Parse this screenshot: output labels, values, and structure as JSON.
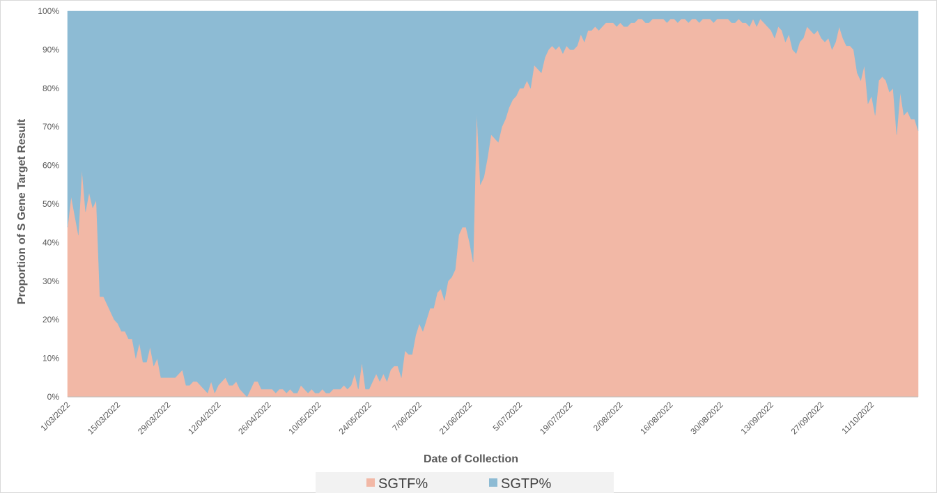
{
  "chart_data": {
    "type": "stacked-area-100",
    "x_label": "Date of Collection",
    "y_label": "Proportion of S Gene Target Result",
    "categories": [
      "1/03/2022",
      null,
      null,
      null,
      null,
      null,
      null,
      null,
      null,
      null,
      null,
      null,
      null,
      null,
      "15/03/2022",
      null,
      null,
      null,
      null,
      null,
      null,
      null,
      null,
      null,
      null,
      null,
      null,
      null,
      "29/03/2022",
      null,
      null,
      null,
      null,
      null,
      null,
      null,
      null,
      null,
      null,
      null,
      null,
      null,
      "12/04/2022",
      null,
      null,
      null,
      null,
      null,
      null,
      null,
      null,
      null,
      null,
      null,
      null,
      null,
      "26/04/2022",
      null,
      null,
      null,
      null,
      null,
      null,
      null,
      null,
      null,
      null,
      null,
      null,
      null,
      "10/05/2022",
      null,
      null,
      null,
      null,
      null,
      null,
      null,
      null,
      null,
      null,
      null,
      null,
      null,
      "24/05/2022",
      null,
      null,
      null,
      null,
      null,
      null,
      null,
      null,
      null,
      null,
      null,
      null,
      null,
      "7/06/2022",
      null,
      null,
      null,
      null,
      null,
      null,
      null,
      null,
      null,
      null,
      null,
      null,
      null,
      "21/06/2022",
      null,
      null,
      null,
      null,
      null,
      null,
      null,
      null,
      null,
      null,
      null,
      null,
      null,
      "5/07/2022",
      null,
      null,
      null,
      null,
      null,
      null,
      null,
      null,
      null,
      null,
      null,
      null,
      null,
      "19/07/2022",
      null,
      null,
      null,
      null,
      null,
      null,
      null,
      null,
      null,
      null,
      null,
      null,
      null,
      "2/08/2022",
      null,
      null,
      null,
      null,
      null,
      null,
      null,
      null,
      null,
      null,
      null,
      null,
      null,
      "16/08/2022",
      null,
      null,
      null,
      null,
      null,
      null,
      null,
      null,
      null,
      null,
      null,
      null,
      null,
      "30/08/2022",
      null,
      null,
      null,
      null,
      null,
      null,
      null,
      null,
      null,
      null,
      null,
      null,
      null,
      "13/09/2022",
      null,
      null,
      null,
      null,
      null,
      null,
      null,
      null,
      null,
      null,
      null,
      null,
      null,
      "27/09/2022",
      null,
      null,
      null,
      null,
      null,
      null,
      null,
      null,
      null,
      null,
      null,
      null,
      null,
      "11/10/2022",
      null,
      null,
      null,
      null,
      null,
      null,
      null,
      null,
      null,
      null,
      null,
      null,
      null
    ],
    "series": [
      {
        "name": "SGTF%",
        "color": "#f2b8a6",
        "values": [
          44,
          52,
          47,
          42,
          59,
          48,
          53,
          49,
          51,
          26,
          26,
          24,
          22,
          20,
          19,
          17,
          17,
          15,
          15,
          10,
          14,
          9,
          9,
          13,
          8,
          10,
          5,
          5,
          5,
          5,
          5,
          6,
          7,
          3,
          3,
          4,
          4,
          3,
          2,
          1,
          4,
          1,
          3,
          4,
          5,
          3,
          3,
          4,
          2,
          1,
          0,
          2,
          4,
          4,
          2,
          2,
          2,
          2,
          1,
          2,
          2,
          1,
          2,
          1,
          1,
          3,
          2,
          1,
          2,
          1,
          1,
          2,
          1,
          1,
          2,
          2,
          2,
          3,
          2,
          3,
          6,
          2,
          9,
          2,
          2,
          4,
          6,
          4,
          6,
          4,
          7,
          8,
          8,
          5,
          12,
          11,
          11,
          16,
          19,
          17,
          20,
          23,
          23,
          27,
          28,
          25,
          30,
          31,
          33,
          42,
          44,
          44,
          40,
          35,
          74,
          55,
          57,
          62,
          68,
          67,
          66,
          70,
          72,
          75,
          77,
          78,
          80,
          80,
          82,
          80,
          86,
          85,
          84,
          88,
          90,
          91,
          90,
          91,
          89,
          91,
          90,
          90,
          91,
          94,
          92,
          95,
          95,
          96,
          95,
          96,
          97,
          97,
          97,
          96,
          97,
          96,
          96,
          97,
          97,
          98,
          98,
          97,
          97,
          98,
          98,
          98,
          98,
          97,
          98,
          98,
          97,
          98,
          98,
          97,
          98,
          98,
          97,
          98,
          98,
          98,
          97,
          98,
          98,
          98,
          98,
          97,
          97,
          98,
          97,
          97,
          96,
          98,
          96,
          98,
          97,
          96,
          95,
          93,
          96,
          95,
          92,
          94,
          90,
          89,
          92,
          93,
          96,
          95,
          94,
          95,
          93,
          92,
          93,
          90,
          92,
          96,
          93,
          91,
          91,
          90,
          84,
          82,
          86,
          76,
          78,
          73,
          82,
          83,
          82,
          79,
          80,
          68,
          79,
          73,
          74,
          72,
          72,
          69
        ]
      },
      {
        "name": "SGTP%",
        "color": "#8dbbd4",
        "values": [
          56,
          48,
          53,
          58,
          41,
          52,
          47,
          51,
          49,
          74,
          74,
          76,
          78,
          80,
          81,
          83,
          83,
          85,
          85,
          90,
          86,
          91,
          91,
          87,
          92,
          90,
          95,
          95,
          95,
          95,
          95,
          94,
          93,
          97,
          97,
          96,
          96,
          97,
          98,
          99,
          96,
          99,
          97,
          96,
          95,
          97,
          97,
          96,
          98,
          99,
          100,
          98,
          96,
          96,
          98,
          98,
          98,
          98,
          99,
          98,
          98,
          99,
          98,
          99,
          99,
          97,
          98,
          99,
          98,
          99,
          99,
          98,
          99,
          99,
          98,
          98,
          98,
          97,
          98,
          97,
          94,
          98,
          91,
          98,
          98,
          96,
          94,
          96,
          94,
          96,
          93,
          92,
          92,
          95,
          88,
          89,
          89,
          84,
          81,
          83,
          80,
          77,
          77,
          73,
          72,
          75,
          70,
          69,
          67,
          58,
          56,
          56,
          60,
          65,
          26,
          45,
          43,
          38,
          32,
          33,
          34,
          30,
          28,
          25,
          23,
          22,
          20,
          20,
          18,
          20,
          14,
          15,
          16,
          12,
          10,
          9,
          10,
          9,
          11,
          9,
          10,
          10,
          9,
          6,
          8,
          5,
          5,
          4,
          5,
          4,
          3,
          3,
          3,
          4,
          3,
          4,
          4,
          3,
          3,
          2,
          2,
          3,
          3,
          2,
          2,
          2,
          2,
          3,
          2,
          2,
          3,
          2,
          2,
          3,
          2,
          2,
          3,
          2,
          2,
          2,
          3,
          2,
          2,
          2,
          2,
          3,
          3,
          2,
          3,
          3,
          4,
          2,
          4,
          2,
          3,
          4,
          5,
          7,
          4,
          5,
          8,
          6,
          10,
          11,
          8,
          7,
          4,
          5,
          6,
          5,
          7,
          8,
          7,
          10,
          8,
          4,
          7,
          9,
          9,
          10,
          16,
          18,
          14,
          24,
          22,
          27,
          18,
          17,
          18,
          21,
          20,
          32,
          21,
          27,
          26,
          28,
          28,
          31
        ]
      }
    ],
    "ylim": [
      0,
      100
    ],
    "yticks": [
      {
        "value": 0,
        "label": "0%"
      },
      {
        "value": 10,
        "label": "10%"
      },
      {
        "value": 20,
        "label": "20%"
      },
      {
        "value": 30,
        "label": "30%"
      },
      {
        "value": 40,
        "label": "40%"
      },
      {
        "value": 50,
        "label": "50%"
      },
      {
        "value": 60,
        "label": "60%"
      },
      {
        "value": 70,
        "label": "70%"
      },
      {
        "value": 80,
        "label": "80%"
      },
      {
        "value": 90,
        "label": "90%"
      },
      {
        "value": 100,
        "label": "100%"
      }
    ],
    "grid": false,
    "legend": "bottom"
  }
}
